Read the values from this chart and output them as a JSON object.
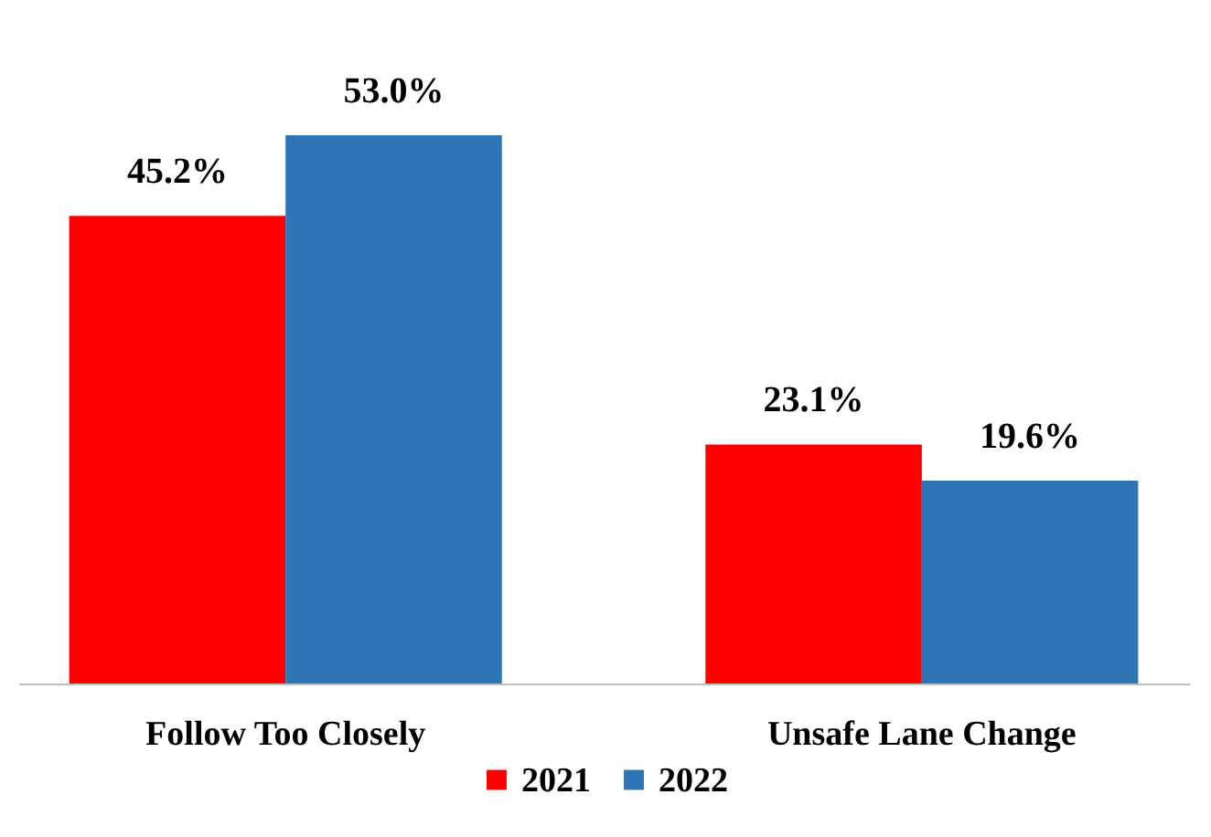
{
  "chart_data": {
    "type": "bar",
    "categories": [
      "Follow Too Closely",
      "Unsafe Lane Change"
    ],
    "series": [
      {
        "name": "2021",
        "color": "#ff0000",
        "values": [
          45.2,
          23.1
        ],
        "value_labels": [
          "45.2%",
          "23.1%"
        ]
      },
      {
        "name": "2022",
        "color": "#2e75b6",
        "values": [
          53.0,
          19.6
        ],
        "value_labels": [
          "53.0%",
          "19.6%"
        ]
      }
    ],
    "legend": "bottom"
  }
}
